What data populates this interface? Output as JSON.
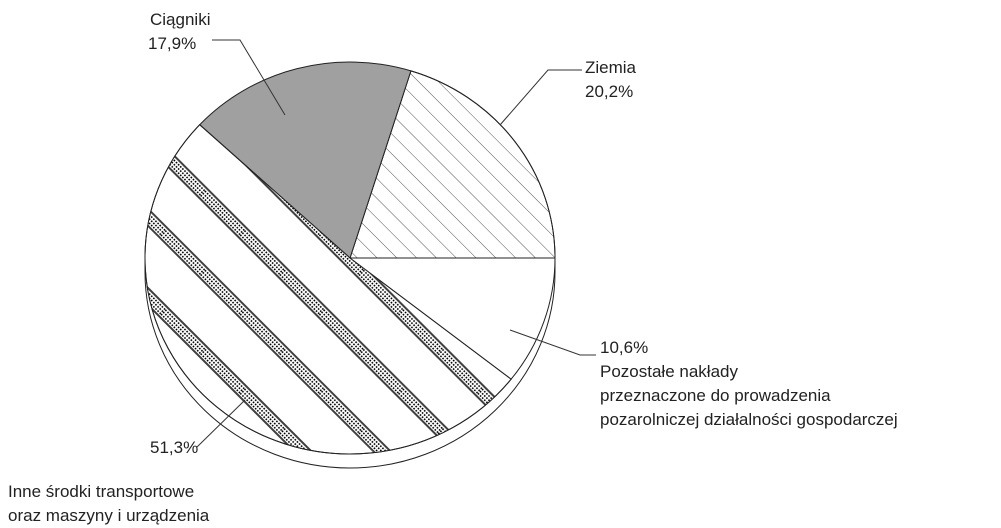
{
  "chart_data": {
    "type": "pie",
    "categories": [
      "Ziemia",
      "Ciągniki",
      "Inne środki transportowe\noraz maszyny i urządzenia",
      "Pozostałe nakłady\nprzeznaczone do prowadzenia\npozarolniczej działalności gospodarczej"
    ],
    "values": [
      20.2,
      17.9,
      51.3,
      10.6
    ],
    "value_labels": [
      "20,2%",
      "17,9%",
      "51,3%",
      "10,6%"
    ],
    "colors": [
      "#ffffff",
      "#a0a0a0",
      "#ffffff",
      "#ffffff"
    ]
  }
}
